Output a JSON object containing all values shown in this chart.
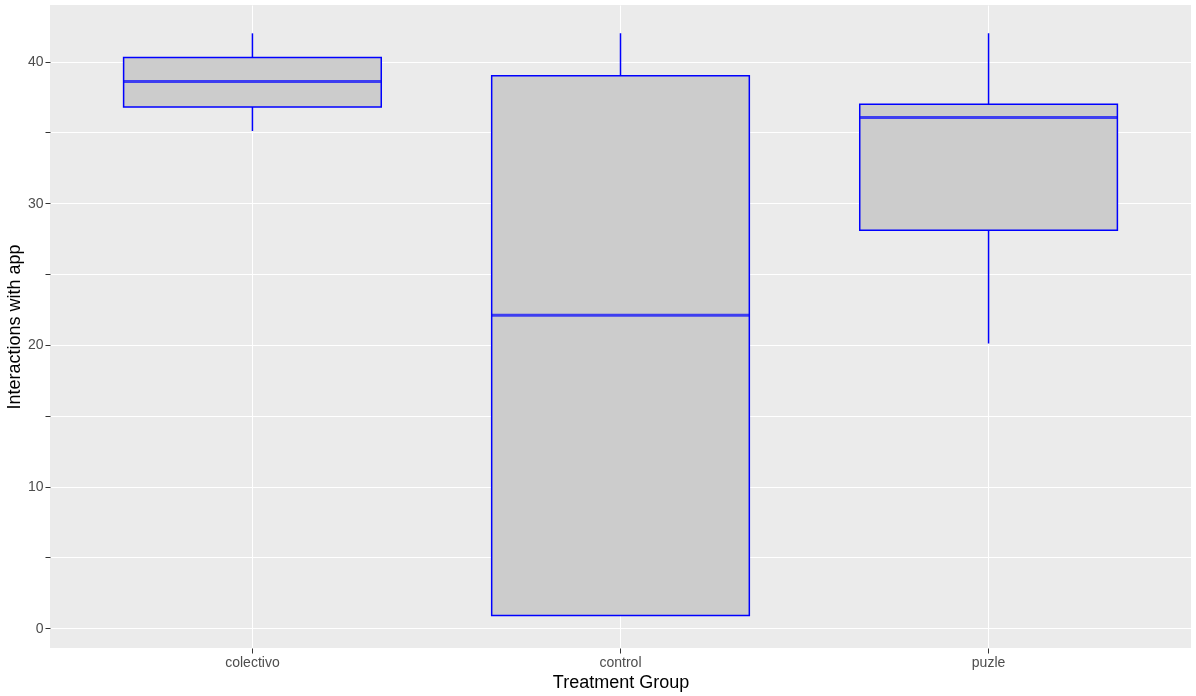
{
  "chart_data": {
    "type": "box",
    "xlabel": "Treatment Group",
    "ylabel": "Interactions with app",
    "categories": [
      "colectivo",
      "control",
      "puzle"
    ],
    "boxes": [
      {
        "low": 35.1,
        "q1": 36.8,
        "median": 38.6,
        "q3": 40.3,
        "high": 42
      },
      {
        "low": 0.9,
        "q1": 0.9,
        "median": 22.1,
        "q3": 39,
        "high": 42
      },
      {
        "low": 20.1,
        "q1": 28.1,
        "median": 36.05,
        "q3": 37,
        "high": 42
      }
    ],
    "color": "#0000ff",
    "ylim": [
      -1.4,
      44
    ],
    "yticks": [
      0,
      {
        "value": 5,
        "label": null
      },
      10,
      {
        "value": 15,
        "label": null
      },
      20,
      {
        "value": 25,
        "label": null
      },
      30,
      {
        "value": 35,
        "label": null
      },
      40
    ],
    "grid": true
  }
}
